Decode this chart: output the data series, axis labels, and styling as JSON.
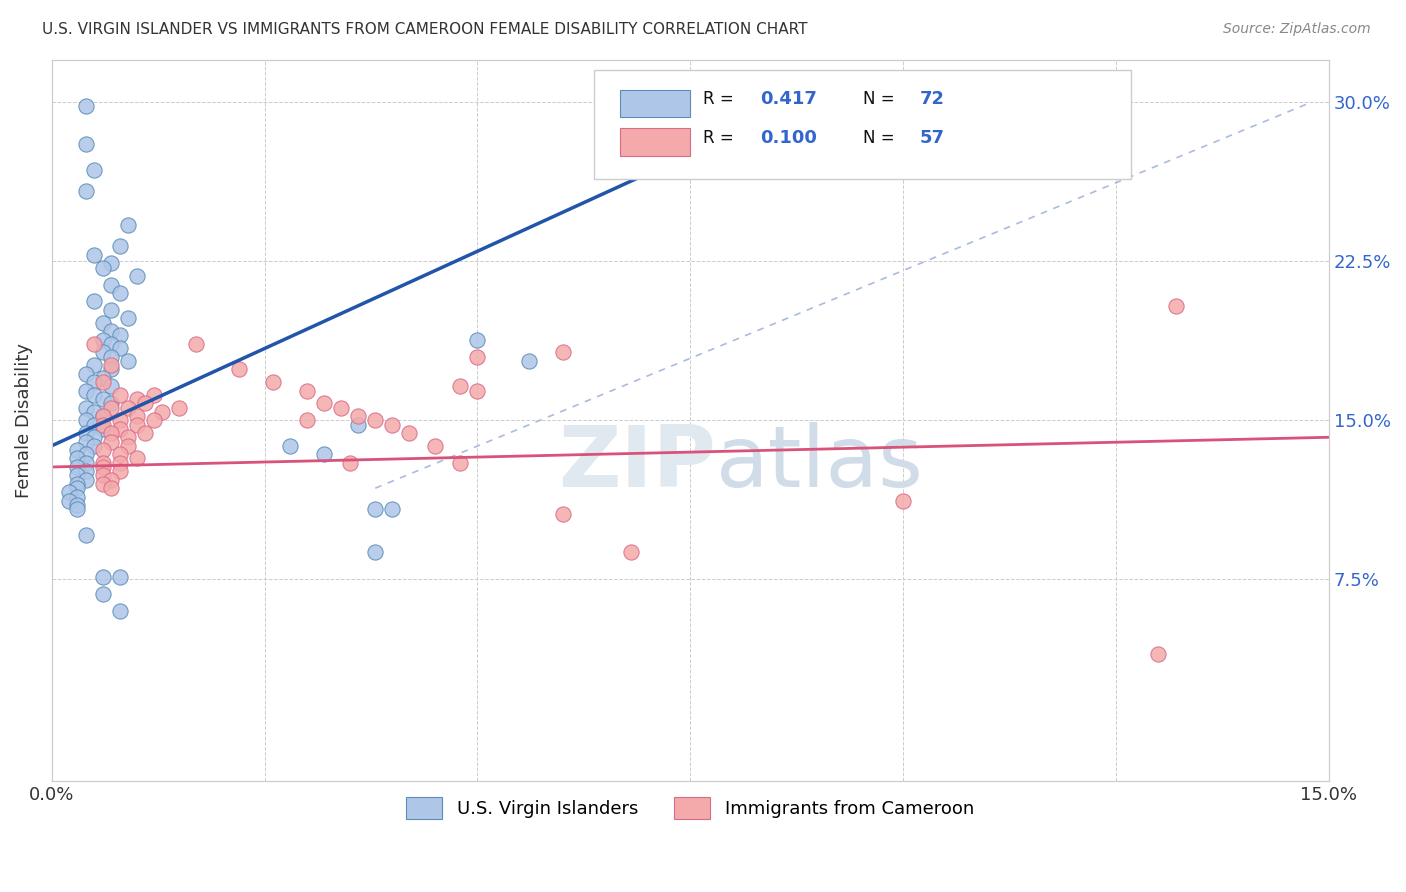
{
  "title": "U.S. VIRGIN ISLANDER VS IMMIGRANTS FROM CAMEROON FEMALE DISABILITY CORRELATION CHART",
  "source": "Source: ZipAtlas.com",
  "ylabel": "Female Disability",
  "xlim": [
    0.0,
    0.15
  ],
  "ylim": [
    -0.02,
    0.32
  ],
  "blue_color": "#AEC6E8",
  "blue_edge": "#5B8DB8",
  "pink_color": "#F4AAAA",
  "pink_edge": "#D96B8A",
  "line_blue": "#2255AA",
  "line_pink": "#D9527A",
  "diag_color": "#AABBDD",
  "legend_blue_text": "#3366CC",
  "legend_pink_text": "#3366CC",
  "blue_scatter": [
    [
      0.004,
      0.298
    ],
    [
      0.004,
      0.28
    ],
    [
      0.005,
      0.268
    ],
    [
      0.004,
      0.258
    ],
    [
      0.009,
      0.242
    ],
    [
      0.008,
      0.232
    ],
    [
      0.005,
      0.228
    ],
    [
      0.007,
      0.224
    ],
    [
      0.006,
      0.222
    ],
    [
      0.01,
      0.218
    ],
    [
      0.007,
      0.214
    ],
    [
      0.008,
      0.21
    ],
    [
      0.005,
      0.206
    ],
    [
      0.007,
      0.202
    ],
    [
      0.009,
      0.198
    ],
    [
      0.006,
      0.196
    ],
    [
      0.007,
      0.192
    ],
    [
      0.008,
      0.19
    ],
    [
      0.006,
      0.188
    ],
    [
      0.007,
      0.186
    ],
    [
      0.008,
      0.184
    ],
    [
      0.006,
      0.182
    ],
    [
      0.007,
      0.18
    ],
    [
      0.009,
      0.178
    ],
    [
      0.005,
      0.176
    ],
    [
      0.007,
      0.174
    ],
    [
      0.004,
      0.172
    ],
    [
      0.006,
      0.17
    ],
    [
      0.005,
      0.168
    ],
    [
      0.007,
      0.166
    ],
    [
      0.004,
      0.164
    ],
    [
      0.005,
      0.162
    ],
    [
      0.006,
      0.16
    ],
    [
      0.007,
      0.158
    ],
    [
      0.004,
      0.156
    ],
    [
      0.005,
      0.154
    ],
    [
      0.006,
      0.152
    ],
    [
      0.004,
      0.15
    ],
    [
      0.005,
      0.148
    ],
    [
      0.006,
      0.146
    ],
    [
      0.004,
      0.144
    ],
    [
      0.005,
      0.142
    ],
    [
      0.004,
      0.14
    ],
    [
      0.005,
      0.138
    ],
    [
      0.003,
      0.136
    ],
    [
      0.004,
      0.134
    ],
    [
      0.003,
      0.132
    ],
    [
      0.004,
      0.13
    ],
    [
      0.003,
      0.128
    ],
    [
      0.004,
      0.126
    ],
    [
      0.003,
      0.124
    ],
    [
      0.004,
      0.122
    ],
    [
      0.003,
      0.12
    ],
    [
      0.003,
      0.118
    ],
    [
      0.002,
      0.116
    ],
    [
      0.003,
      0.114
    ],
    [
      0.002,
      0.112
    ],
    [
      0.003,
      0.11
    ],
    [
      0.003,
      0.108
    ],
    [
      0.004,
      0.096
    ],
    [
      0.006,
      0.076
    ],
    [
      0.006,
      0.068
    ],
    [
      0.036,
      0.148
    ],
    [
      0.032,
      0.134
    ],
    [
      0.05,
      0.188
    ],
    [
      0.056,
      0.178
    ],
    [
      0.04,
      0.108
    ],
    [
      0.038,
      0.088
    ],
    [
      0.008,
      0.076
    ],
    [
      0.008,
      0.06
    ],
    [
      0.038,
      0.108
    ],
    [
      0.028,
      0.138
    ]
  ],
  "pink_scatter": [
    [
      0.005,
      0.186
    ],
    [
      0.007,
      0.176
    ],
    [
      0.006,
      0.168
    ],
    [
      0.008,
      0.162
    ],
    [
      0.01,
      0.16
    ],
    [
      0.012,
      0.162
    ],
    [
      0.007,
      0.156
    ],
    [
      0.009,
      0.156
    ],
    [
      0.011,
      0.158
    ],
    [
      0.013,
      0.154
    ],
    [
      0.015,
      0.156
    ],
    [
      0.006,
      0.152
    ],
    [
      0.008,
      0.15
    ],
    [
      0.01,
      0.152
    ],
    [
      0.012,
      0.15
    ],
    [
      0.006,
      0.148
    ],
    [
      0.008,
      0.146
    ],
    [
      0.01,
      0.148
    ],
    [
      0.007,
      0.144
    ],
    [
      0.009,
      0.142
    ],
    [
      0.011,
      0.144
    ],
    [
      0.007,
      0.14
    ],
    [
      0.009,
      0.138
    ],
    [
      0.006,
      0.136
    ],
    [
      0.008,
      0.134
    ],
    [
      0.01,
      0.132
    ],
    [
      0.006,
      0.13
    ],
    [
      0.008,
      0.13
    ],
    [
      0.006,
      0.128
    ],
    [
      0.008,
      0.126
    ],
    [
      0.006,
      0.124
    ],
    [
      0.007,
      0.122
    ],
    [
      0.006,
      0.12
    ],
    [
      0.007,
      0.118
    ],
    [
      0.017,
      0.186
    ],
    [
      0.022,
      0.174
    ],
    [
      0.026,
      0.168
    ],
    [
      0.03,
      0.164
    ],
    [
      0.032,
      0.158
    ],
    [
      0.034,
      0.156
    ],
    [
      0.036,
      0.152
    ],
    [
      0.038,
      0.15
    ],
    [
      0.04,
      0.148
    ],
    [
      0.042,
      0.144
    ],
    [
      0.045,
      0.138
    ],
    [
      0.048,
      0.166
    ],
    [
      0.05,
      0.18
    ],
    [
      0.06,
      0.182
    ],
    [
      0.048,
      0.13
    ],
    [
      0.05,
      0.164
    ],
    [
      0.035,
      0.13
    ],
    [
      0.03,
      0.15
    ],
    [
      0.06,
      0.106
    ],
    [
      0.068,
      0.088
    ],
    [
      0.1,
      0.112
    ],
    [
      0.13,
      0.04
    ],
    [
      0.132,
      0.204
    ]
  ],
  "blue_line_x": [
    0.0,
    0.072
  ],
  "blue_line_y": [
    0.138,
    0.27
  ],
  "pink_line_x": [
    0.0,
    0.15
  ],
  "pink_line_y": [
    0.128,
    0.142
  ],
  "diag_line_x": [
    0.038,
    0.148
  ],
  "diag_line_y": [
    0.118,
    0.3
  ]
}
